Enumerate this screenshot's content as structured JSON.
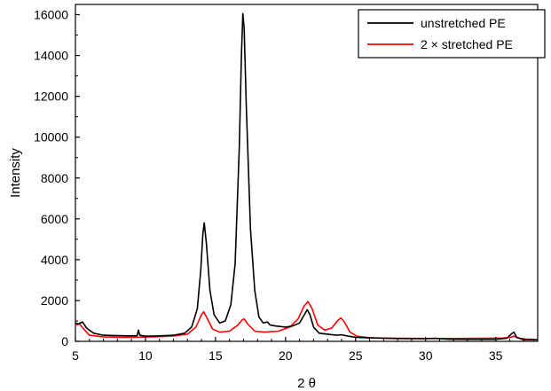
{
  "chart_data": {
    "type": "line",
    "xlabel": "2 θ",
    "ylabel": "Intensity",
    "xlim": [
      5,
      38
    ],
    "ylim": [
      0,
      16500
    ],
    "xticks": [
      5,
      10,
      15,
      20,
      25,
      30,
      35
    ],
    "yticks": [
      0,
      2000,
      4000,
      6000,
      8000,
      10000,
      12000,
      14000,
      16000
    ],
    "legend_position": "top-right",
    "series": [
      {
        "name": "unstretched PE",
        "color": "#000000",
        "points": [
          [
            5.0,
            900
          ],
          [
            5.2,
            850
          ],
          [
            5.5,
            950
          ],
          [
            5.8,
            650
          ],
          [
            6.3,
            400
          ],
          [
            7,
            300
          ],
          [
            8,
            280
          ],
          [
            9,
            270
          ],
          [
            9.4,
            280
          ],
          [
            9.5,
            550
          ],
          [
            9.6,
            300
          ],
          [
            10,
            250
          ],
          [
            11,
            270
          ],
          [
            12,
            300
          ],
          [
            12.8,
            400
          ],
          [
            13.3,
            700
          ],
          [
            13.7,
            1600
          ],
          [
            13.95,
            3500
          ],
          [
            14.1,
            5300
          ],
          [
            14.2,
            5800
          ],
          [
            14.35,
            4800
          ],
          [
            14.6,
            2500
          ],
          [
            14.9,
            1300
          ],
          [
            15.3,
            900
          ],
          [
            15.7,
            1000
          ],
          [
            16.1,
            1800
          ],
          [
            16.4,
            3800
          ],
          [
            16.7,
            9500
          ],
          [
            16.85,
            14000
          ],
          [
            16.95,
            16050
          ],
          [
            17.05,
            15300
          ],
          [
            17.2,
            11500
          ],
          [
            17.5,
            5500
          ],
          [
            17.8,
            2500
          ],
          [
            18.1,
            1200
          ],
          [
            18.4,
            900
          ],
          [
            18.7,
            950
          ],
          [
            18.9,
            800
          ],
          [
            19.3,
            750
          ],
          [
            20,
            700
          ],
          [
            20.5,
            750
          ],
          [
            21.0,
            900
          ],
          [
            21.3,
            1250
          ],
          [
            21.55,
            1550
          ],
          [
            21.75,
            1300
          ],
          [
            22.0,
            700
          ],
          [
            22.4,
            400
          ],
          [
            23,
            350
          ],
          [
            23.6,
            300
          ],
          [
            24,
            320
          ],
          [
            24.5,
            250
          ],
          [
            25,
            200
          ],
          [
            26,
            170
          ],
          [
            27,
            150
          ],
          [
            28,
            140
          ],
          [
            29,
            130
          ],
          [
            30,
            130
          ],
          [
            30.7,
            150
          ],
          [
            31.5,
            110
          ],
          [
            33,
            100
          ],
          [
            35,
            100
          ],
          [
            35.8,
            150
          ],
          [
            36.1,
            350
          ],
          [
            36.3,
            450
          ],
          [
            36.5,
            200
          ],
          [
            37,
            80
          ],
          [
            38,
            80
          ]
        ]
      },
      {
        "name": "2 × stretched PE",
        "color": "#ff0000",
        "points": [
          [
            5.0,
            800
          ],
          [
            5.3,
            850
          ],
          [
            5.6,
            600
          ],
          [
            6,
            300
          ],
          [
            7,
            220
          ],
          [
            8,
            200
          ],
          [
            9,
            200
          ],
          [
            10,
            210
          ],
          [
            11,
            230
          ],
          [
            12,
            260
          ],
          [
            13,
            350
          ],
          [
            13.6,
            700
          ],
          [
            14.0,
            1300
          ],
          [
            14.15,
            1450
          ],
          [
            14.35,
            1200
          ],
          [
            14.8,
            600
          ],
          [
            15.3,
            450
          ],
          [
            16,
            500
          ],
          [
            16.6,
            800
          ],
          [
            16.9,
            1050
          ],
          [
            17.05,
            1100
          ],
          [
            17.3,
            850
          ],
          [
            17.8,
            500
          ],
          [
            18.5,
            450
          ],
          [
            19.5,
            500
          ],
          [
            20.3,
            700
          ],
          [
            20.9,
            1100
          ],
          [
            21.3,
            1700
          ],
          [
            21.6,
            1950
          ],
          [
            21.9,
            1600
          ],
          [
            22.3,
            800
          ],
          [
            22.8,
            550
          ],
          [
            23.3,
            650
          ],
          [
            23.7,
            1000
          ],
          [
            23.95,
            1150
          ],
          [
            24.2,
            950
          ],
          [
            24.6,
            450
          ],
          [
            25.1,
            250
          ],
          [
            26,
            180
          ],
          [
            27,
            160
          ],
          [
            28,
            150
          ],
          [
            30,
            140
          ],
          [
            31,
            140
          ],
          [
            32,
            140
          ],
          [
            34,
            150
          ],
          [
            35.5,
            160
          ],
          [
            36,
            190
          ],
          [
            36.3,
            250
          ],
          [
            36.6,
            160
          ],
          [
            37.2,
            110
          ],
          [
            37.8,
            90
          ]
        ]
      }
    ]
  }
}
